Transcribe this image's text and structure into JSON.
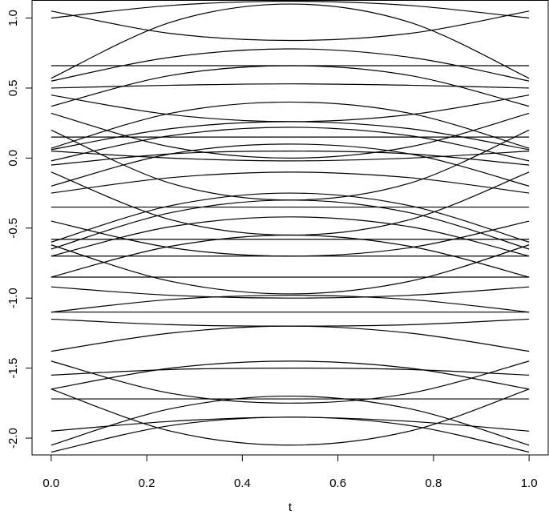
{
  "chart_data": {
    "type": "line",
    "xlabel": "t",
    "x": [
      0,
      0.25,
      0.5,
      0.75,
      1
    ],
    "xlim": [
      -0.04,
      1.04
    ],
    "xticks": [
      {
        "value": 0,
        "label": "0.0"
      },
      0.2,
      0.4,
      0.6,
      0.8,
      {
        "value": 1,
        "label": "1.0"
      }
    ],
    "ylim": [
      -2.12,
      1.126
    ],
    "yticks": [
      {
        "value": -2,
        "label": "-2.0"
      },
      -1.5,
      {
        "value": -1,
        "label": "-1.0"
      },
      -0.5,
      {
        "value": 0,
        "label": "0.0"
      },
      0.5,
      {
        "value": 1,
        "label": "1.0"
      }
    ],
    "color": "#000000",
    "series": [
      {
        "values": [
          1.0,
          1.09,
          1.12,
          1.09,
          1.0
        ]
      },
      {
        "values": [
          1.05,
          0.89,
          0.84,
          0.89,
          1.05
        ]
      },
      {
        "values": [
          0.57,
          0.97,
          1.1,
          0.97,
          0.57
        ]
      },
      {
        "values": [
          0.66,
          0.66,
          0.66,
          0.66,
          0.66
        ]
      },
      {
        "values": [
          0.55,
          0.72,
          0.78,
          0.72,
          0.55
        ]
      },
      {
        "values": [
          0.37,
          0.59,
          0.66,
          0.59,
          0.37
        ]
      },
      {
        "values": [
          0.5,
          0.52,
          0.53,
          0.52,
          0.5
        ]
      },
      {
        "values": [
          0.45,
          0.31,
          0.26,
          0.31,
          0.45
        ]
      },
      {
        "values": [
          0.07,
          0.32,
          0.4,
          0.32,
          0.07
        ]
      },
      {
        "values": [
          0.06,
          0.21,
          0.26,
          0.21,
          0.06
        ]
      },
      {
        "values": [
          -0.02,
          0.16,
          0.22,
          0.16,
          -0.02
        ]
      },
      {
        "values": [
          0.32,
          0.08,
          0.0,
          0.08,
          0.32
        ]
      },
      {
        "values": [
          0.05,
          0.0,
          -0.02,
          0.0,
          0.05
        ]
      },
      {
        "values": [
          -0.05,
          0.03,
          0.05,
          0.03,
          -0.05
        ]
      },
      {
        "values": [
          0.2,
          -0.18,
          -0.3,
          -0.18,
          0.2
        ]
      },
      {
        "values": [
          -0.2,
          0.03,
          0.1,
          0.03,
          -0.2
        ]
      },
      {
        "values": [
          -0.25,
          -0.14,
          -0.1,
          -0.14,
          -0.25
        ]
      },
      {
        "values": [
          -0.1,
          -0.44,
          -0.55,
          -0.44,
          -0.1
        ]
      },
      {
        "values": [
          -0.6,
          -0.34,
          -0.25,
          -0.34,
          -0.6
        ]
      },
      {
        "values": [
          -0.65,
          -0.39,
          -0.3,
          -0.39,
          -0.65
        ]
      },
      {
        "values": [
          -0.7,
          -0.49,
          -0.42,
          -0.49,
          -0.7
        ]
      },
      {
        "values": [
          -0.45,
          -0.64,
          -0.7,
          -0.64,
          -0.45
        ]
      },
      {
        "values": [
          -0.7,
          -0.7,
          -0.7,
          -0.7,
          -0.7
        ]
      },
      {
        "values": [
          -0.62,
          -0.88,
          -0.97,
          -0.88,
          -0.62
        ]
      },
      {
        "values": [
          -0.85,
          -0.63,
          -0.55,
          -0.63,
          -0.85
        ]
      },
      {
        "values": [
          -0.92,
          -0.98,
          -1.0,
          -0.98,
          -0.92
        ]
      },
      {
        "values": [
          -1.1,
          -1.01,
          -0.98,
          -1.01,
          -1.1
        ]
      },
      {
        "values": [
          -1.15,
          -1.19,
          -1.2,
          -1.19,
          -1.15
        ]
      },
      {
        "values": [
          -1.1,
          -1.1,
          -1.1,
          -1.1,
          -1.1
        ]
      },
      {
        "values": [
          -1.38,
          -1.25,
          -1.2,
          -1.25,
          -1.38
        ]
      },
      {
        "values": [
          -1.55,
          -1.51,
          -1.5,
          -1.51,
          -1.55
        ]
      },
      {
        "values": [
          -1.45,
          -1.68,
          -1.75,
          -1.68,
          -1.45
        ]
      },
      {
        "values": [
          -1.65,
          -1.5,
          -1.45,
          -1.5,
          -1.65
        ]
      },
      {
        "values": [
          -1.72,
          -1.72,
          -1.72,
          -1.72,
          -1.72
        ]
      },
      {
        "values": [
          -1.65,
          -1.95,
          -2.05,
          -1.95,
          -1.65
        ]
      },
      {
        "values": [
          -2.05,
          -1.79,
          -1.7,
          -1.79,
          -2.05
        ]
      },
      {
        "values": [
          -1.95,
          -1.88,
          -1.85,
          -1.88,
          -1.95
        ]
      },
      {
        "values": [
          -2.1,
          -1.91,
          -1.85,
          -1.91,
          -2.1
        ]
      },
      {
        "values": [
          -0.35,
          -0.35,
          -0.35,
          -0.35,
          -0.35
        ]
      },
      {
        "values": [
          -0.58,
          -0.58,
          -0.58,
          -0.58,
          -0.58
        ]
      },
      {
        "values": [
          0.15,
          0.15,
          0.15,
          0.15,
          0.15
        ]
      },
      {
        "values": [
          -0.85,
          -0.85,
          -0.85,
          -0.85,
          -0.85
        ]
      }
    ]
  }
}
